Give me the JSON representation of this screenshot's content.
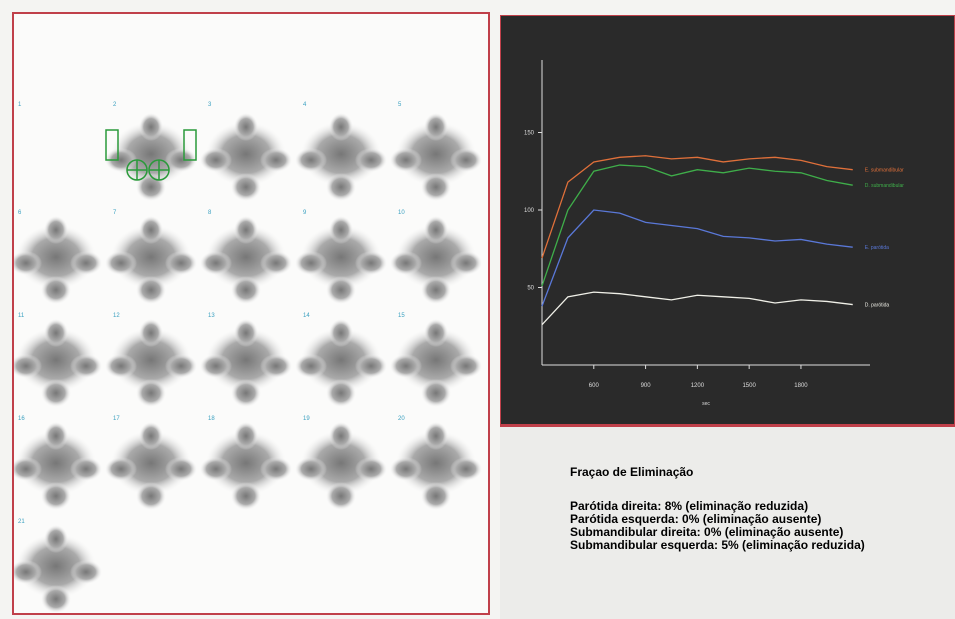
{
  "frame_labels": [
    "1",
    "2",
    "3",
    "4",
    "5",
    "6",
    "7",
    "8",
    "9",
    "10",
    "11",
    "12",
    "13",
    "14",
    "15",
    "16",
    "17",
    "18",
    "19",
    "20",
    "21"
  ],
  "chart_data": {
    "type": "line",
    "x_label": "sec",
    "x": [
      300,
      450,
      600,
      750,
      900,
      1050,
      1200,
      1350,
      1500,
      1650,
      1800,
      1950,
      2100
    ],
    "xlim": [
      300,
      2200
    ],
    "xticks": [
      600,
      900,
      1200,
      1500,
      1800
    ],
    "ylim": [
      0,
      200
    ],
    "yticks": [
      50,
      100,
      150
    ],
    "series": [
      {
        "name": "E. submandibular",
        "color": "#e0703a",
        "values": [
          69,
          118,
          131,
          134,
          135,
          133,
          134,
          131,
          133,
          134,
          132,
          128,
          126
        ]
      },
      {
        "name": "D. submandibular",
        "color": "#3fae4a",
        "values": [
          51,
          100,
          125,
          129,
          128,
          122,
          126,
          124,
          127,
          125,
          124,
          119,
          116
        ]
      },
      {
        "name": "E. parótida",
        "color": "#5a78d8",
        "values": [
          38,
          82,
          100,
          98,
          92,
          90,
          88,
          83,
          82,
          80,
          81,
          78,
          76
        ]
      },
      {
        "name": "D. parótida",
        "color": "#f0f0e8",
        "values": [
          26,
          44,
          47,
          46,
          44,
          42,
          45,
          44,
          43,
          40,
          42,
          41,
          39
        ]
      }
    ]
  },
  "text_panel": {
    "title": "Fraçao de Eliminação",
    "lines": [
      "Parótida direita: 8% (eliminação reduzida)",
      "Parótida esquerda: 0% (eliminação ausente)",
      "Submandibular direita: 0% (eliminação ausente)",
      "Submandibular esquerda: 5% (eliminação reduzida)"
    ]
  }
}
